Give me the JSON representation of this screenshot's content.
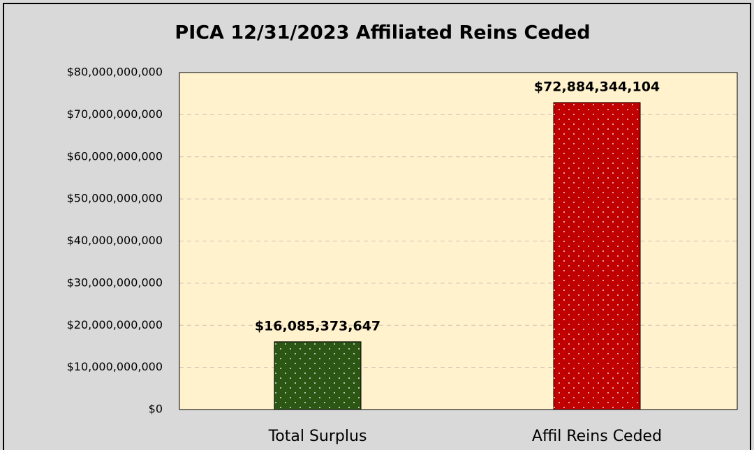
{
  "chart_data": {
    "type": "bar",
    "title": "PICA 12/31/2023 Affiliated Reins Ceded",
    "categories": [
      "Total Surplus",
      "Affil Reins Ceded"
    ],
    "values": [
      16085373647,
      72884344104
    ],
    "value_labels": [
      "$16,085,373,647",
      "$72,884,344,104"
    ],
    "colors": [
      "#2b5614",
      "#c00000"
    ],
    "ylim": [
      0,
      80000000000
    ],
    "yticks": [
      {
        "value": 0,
        "label": "$0"
      },
      {
        "value": 10000000000,
        "label": "$10,000,000,000"
      },
      {
        "value": 20000000000,
        "label": "$20,000,000,000"
      },
      {
        "value": 30000000000,
        "label": "$30,000,000,000"
      },
      {
        "value": 40000000000,
        "label": "$40,000,000,000"
      },
      {
        "value": 50000000000,
        "label": "$50,000,000,000"
      },
      {
        "value": 60000000000,
        "label": "$60,000,000,000"
      },
      {
        "value": 70000000000,
        "label": "$70,000,000,000"
      },
      {
        "value": 80000000000,
        "label": "$80,000,000,000"
      }
    ],
    "grid": true
  }
}
